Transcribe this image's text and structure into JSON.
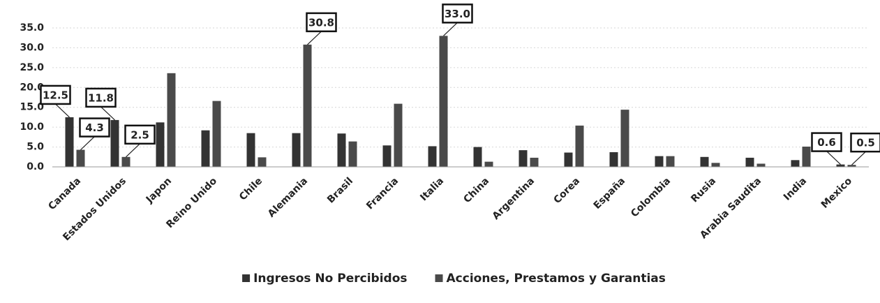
{
  "chart_data": {
    "type": "bar",
    "categories": [
      "Canada",
      "Estados Unidos",
      "Japon",
      "Reino Unido",
      "Chile",
      "Alemania",
      "Brasil",
      "Francia",
      "Italia",
      "China",
      "Argentina",
      "Corea",
      "España",
      "Colombia",
      "Rusia",
      "Arabia Saudita",
      "India",
      "Mexico"
    ],
    "series": [
      {
        "name": "Ingresos No Percibidos",
        "color": "#333333",
        "values": [
          12.5,
          11.8,
          11.2,
          9.2,
          8.5,
          8.5,
          8.4,
          5.4,
          5.2,
          5.0,
          4.2,
          3.6,
          3.7,
          2.7,
          2.5,
          2.3,
          1.7,
          0.6
        ],
        "value_labels": [
          "12.5",
          "11.8",
          null,
          null,
          null,
          null,
          null,
          null,
          null,
          null,
          null,
          null,
          null,
          null,
          null,
          null,
          null,
          "0.6"
        ]
      },
      {
        "name": "Acciones, Prestamos y Garantias",
        "color": "#4a4a4a",
        "values": [
          4.3,
          2.5,
          23.6,
          16.6,
          2.4,
          30.8,
          6.4,
          15.9,
          33.0,
          1.3,
          2.3,
          10.4,
          14.4,
          2.7,
          1.0,
          0.8,
          5.1,
          0.5
        ],
        "value_labels": [
          "4.3",
          "2.5",
          null,
          null,
          null,
          "30.8",
          null,
          null,
          "33.0",
          null,
          null,
          null,
          null,
          null,
          null,
          null,
          null,
          "0.5"
        ]
      }
    ],
    "ylim": [
      0,
      35
    ],
    "yticks": [
      {
        "value": 0,
        "label": "0.0"
      },
      {
        "value": 5,
        "label": "5.0"
      },
      {
        "value": 10,
        "label": "10.0"
      },
      {
        "value": 15,
        "label": "15.0"
      },
      {
        "value": 20,
        "label": "20.0"
      },
      {
        "value": 25,
        "label": "25.0"
      },
      {
        "value": 30,
        "label": "30.0"
      },
      {
        "value": 35,
        "label": "35.0"
      }
    ],
    "grid": true,
    "legend": "bottom"
  }
}
